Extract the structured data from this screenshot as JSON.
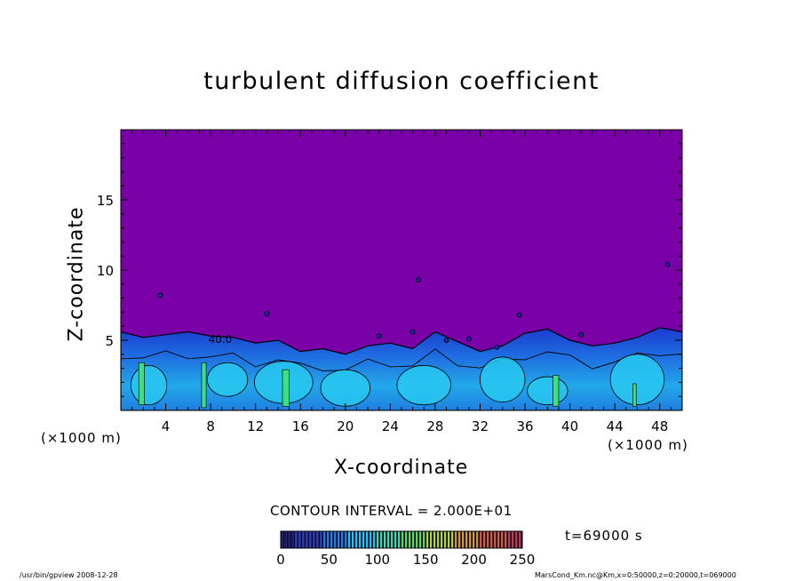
{
  "chart_data": {
    "type": "heatmap",
    "title": "turbulent diffusion coefficient",
    "xlabel": "X-coordinate",
    "ylabel": "Z-coordinate",
    "x_unit": "(×1000 m)",
    "y_unit": "(×1000 m)",
    "xlim": [
      0,
      50
    ],
    "ylim": [
      0,
      20
    ],
    "x_ticks": [
      4,
      8,
      12,
      16,
      20,
      24,
      28,
      32,
      36,
      40,
      44,
      48
    ],
    "y_ticks": [
      5,
      10,
      15
    ],
    "contour_interval": "CONTOUR INTERVAL = 2.000E+01",
    "contour_label": "40.0",
    "colorbar": {
      "range": [
        0,
        250
      ],
      "ticks": [
        0,
        50,
        100,
        150,
        200,
        250
      ],
      "colors": [
        "#1a1a6e",
        "#2a3ab8",
        "#1f7fe0",
        "#20c8f0",
        "#3de0a0",
        "#5ae050",
        "#b0d830",
        "#d89a30",
        "#d85a30",
        "#c83a3a"
      ]
    },
    "background_color": "#7a00a8",
    "turbulent_layer_top_km": [
      5.6,
      5.2,
      5.4,
      5.6,
      5.3,
      5.2,
      4.8,
      5.0,
      4.2,
      4.4,
      4.0,
      4.6,
      4.8,
      4.4,
      5.6,
      4.9,
      4.2,
      4.6,
      5.5,
      5.8,
      5.0,
      4.6,
      4.8,
      5.2,
      5.9,
      5.6
    ]
  },
  "time": "t=69000 s",
  "footer": {
    "left": "/usr/bin/gpview   2008-12-28",
    "right": "MarsCond_Km.nc@Km,x=0:50000,z=0:20000,t=069000"
  }
}
